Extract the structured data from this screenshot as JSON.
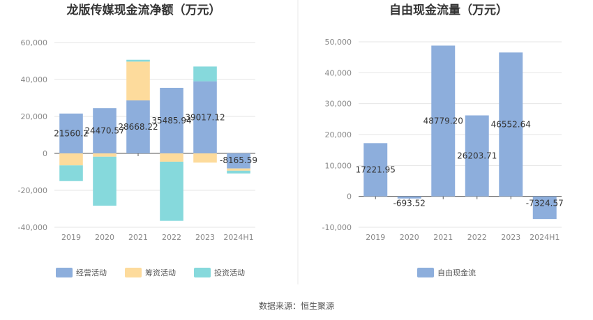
{
  "chart_data": [
    {
      "type": "bar",
      "stacked": true,
      "title": "龙版传媒现金流净额（万元）",
      "categories": [
        "2019",
        "2020",
        "2021",
        "2022",
        "2023",
        "2024H1"
      ],
      "ylim": [
        -40000,
        60000
      ],
      "yticks": [
        60000,
        40000,
        20000,
        0,
        -20000,
        -40000
      ],
      "ytick_labels": [
        "60,000",
        "40,000",
        "20,000",
        "0",
        "-20,000",
        "-40,000"
      ],
      "grid": true,
      "legend_position": "bottom",
      "series": [
        {
          "name": "经营活动",
          "color": "#8DAEDC",
          "values": [
            21560.2,
            24470.57,
            28668.22,
            35485.94,
            39017.12,
            -8165.59
          ]
        },
        {
          "name": "筹资活动",
          "color": "#FDDB9C",
          "values": [
            -6500,
            -1800,
            21000,
            -4500,
            -5000,
            -1200
          ]
        },
        {
          "name": "投资活动",
          "color": "#86D9DC",
          "values": [
            -8500,
            -26500,
            1000,
            -32000,
            8000,
            -1500
          ]
        }
      ],
      "data_labels": [
        "21560.2",
        "24470.57",
        "28668.22",
        "35485.94",
        "39017.12",
        "-8165.59"
      ]
    },
    {
      "type": "bar",
      "title": "自由现金流量（万元）",
      "categories": [
        "2019",
        "2020",
        "2021",
        "2022",
        "2023",
        "2024H1"
      ],
      "ylim": [
        -10000,
        50000
      ],
      "yticks": [
        50000,
        40000,
        30000,
        20000,
        10000,
        0,
        -10000
      ],
      "ytick_labels": [
        "50,000",
        "40,000",
        "30,000",
        "20,000",
        "10,000",
        "0",
        "-10,000"
      ],
      "grid": true,
      "legend_position": "bottom",
      "series": [
        {
          "name": "自由现金流",
          "color": "#8DAEDC",
          "values": [
            17221.95,
            -693.52,
            48779.2,
            26203.71,
            46552.64,
            -7324.57
          ]
        }
      ],
      "data_labels": [
        "17221.95",
        "-693.52",
        "48779.20",
        "26203.71",
        "46552.64",
        "-7324.57"
      ]
    }
  ],
  "source": "数据来源：恒生聚源"
}
